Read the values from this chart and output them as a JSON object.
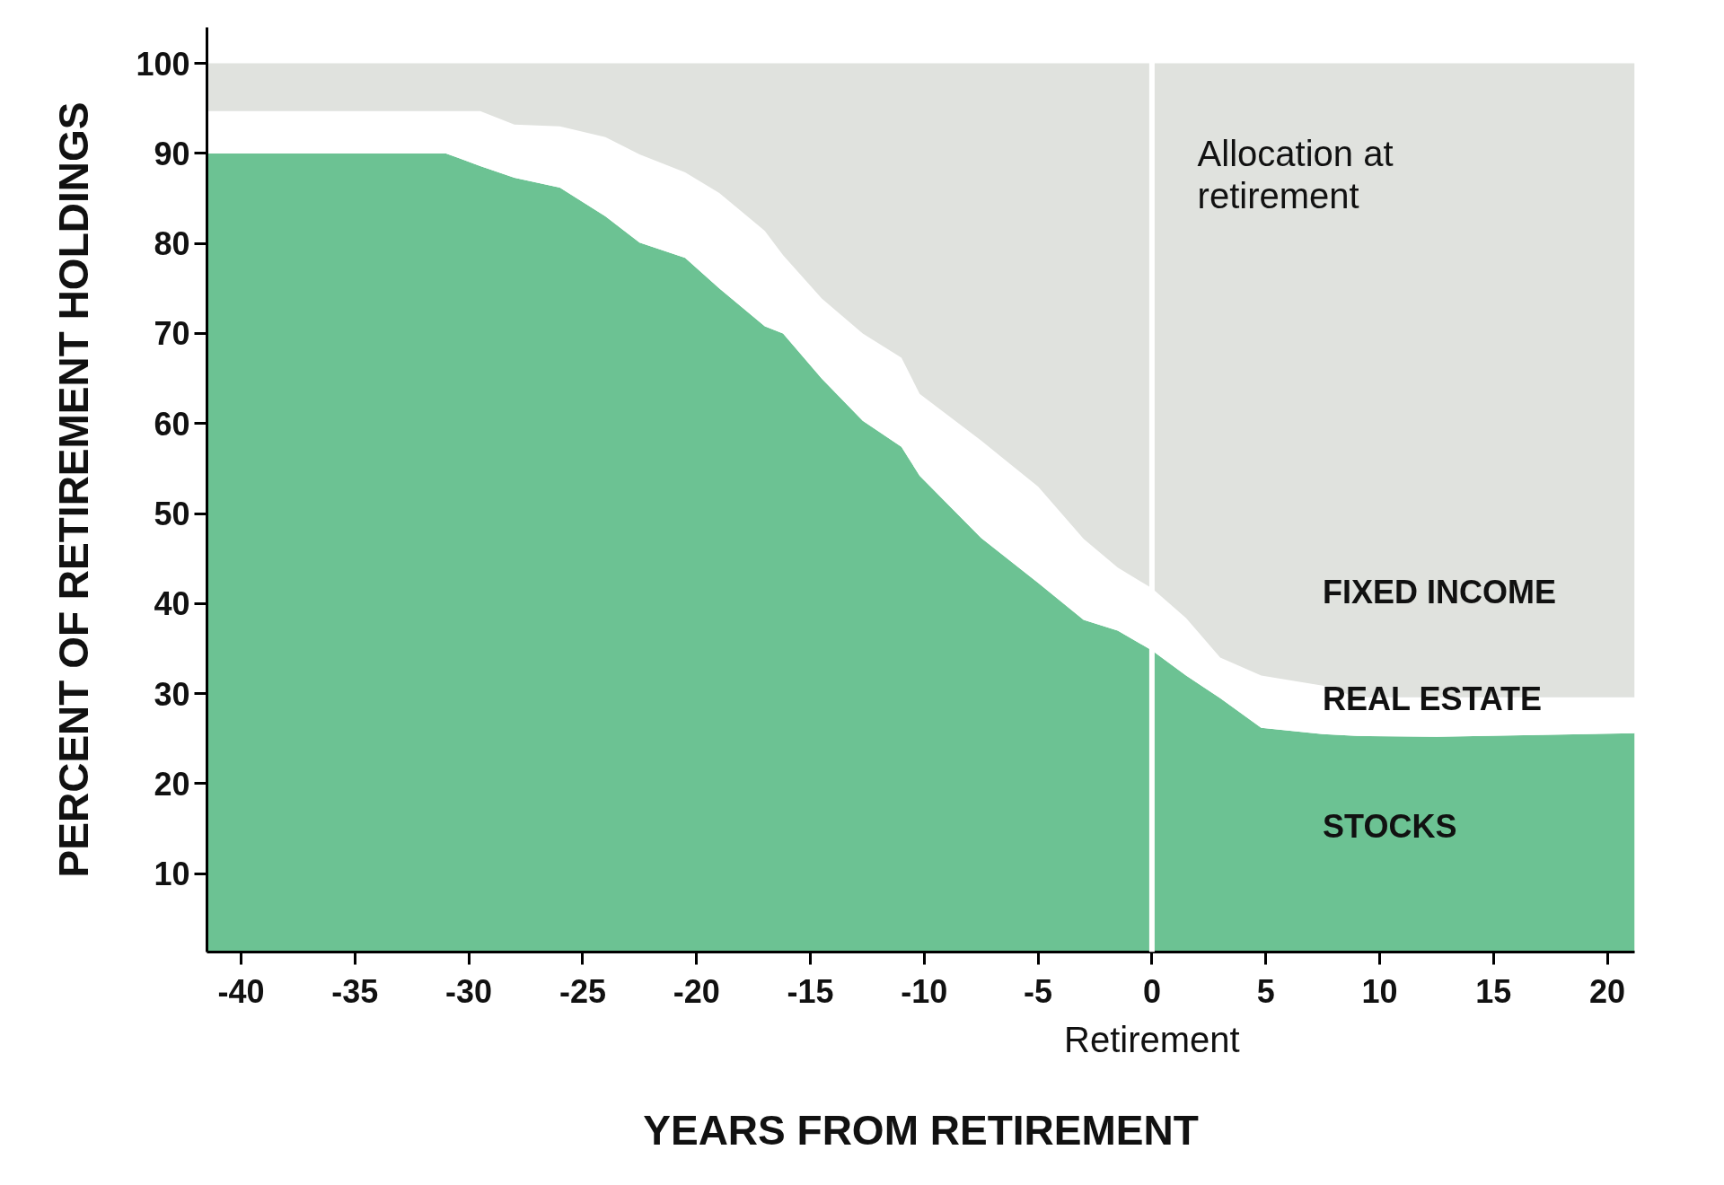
{
  "chart_data": {
    "type": "area",
    "stacked": true,
    "xlabel": "YEARS FROM RETIREMENT",
    "ylabel": "PERCENT OF RETIREMENT HOLDINGS",
    "x": [
      -41.5,
      -31,
      -29.5,
      -28,
      -26,
      -24,
      -22.5,
      -20.5,
      -19,
      -17,
      -16.2,
      -14.5,
      -12.7,
      -11,
      -10.2,
      -7.5,
      -5,
      -3,
      -1.5,
      0,
      1.5,
      3,
      4.8,
      7.5,
      9,
      12.5,
      21.2
    ],
    "series": [
      {
        "name": "STOCKS",
        "color": "#6cc293",
        "values": [
          90,
          90,
          88.6,
          87.3,
          86.2,
          83,
          80.1,
          78.4,
          75,
          70.8,
          70,
          65,
          60.3,
          57.4,
          54.2,
          47.3,
          42.3,
          38.2,
          37,
          34.8,
          32,
          29.5,
          26.2,
          25.5,
          25.3,
          25.2,
          25.6
        ]
      },
      {
        "name": "REAL ESTATE",
        "color": "#ffffff",
        "values": [
          4.7,
          4.7,
          6.1,
          5.9,
          6.8,
          8.8,
          9.8,
          9.5,
          10.6,
          10.6,
          8.7,
          8.9,
          9.7,
          9.9,
          9.1,
          10.8,
          10.7,
          9,
          7,
          6.9,
          6.4,
          4.5,
          5.8,
          5.4,
          4.3,
          4.4,
          4
        ]
      },
      {
        "name": "FIXED INCOME",
        "color": "#e0e2de",
        "values": [
          5.3,
          5.3,
          5.3,
          6.8,
          7,
          8.2,
          10.1,
          12.1,
          14.4,
          18.6,
          21.3,
          26.1,
          30,
          32.7,
          36.7,
          41.9,
          47,
          52.8,
          56,
          58.3,
          61.6,
          66,
          68,
          69.1,
          70.4,
          70.4,
          70.4
        ]
      }
    ],
    "xlim": [
      -41.5,
      21.2
    ],
    "ylim": [
      1.3,
      104
    ],
    "xticks": [
      -40,
      -35,
      -30,
      -25,
      -20,
      -15,
      -10,
      -5,
      0,
      5,
      10,
      15,
      20
    ],
    "yticks": [
      10,
      20,
      30,
      40,
      50,
      60,
      70,
      80,
      90,
      100
    ],
    "ref_lines": [
      {
        "axis": "x",
        "value": 0,
        "color": "#ffffff"
      }
    ],
    "annotations": [
      {
        "text": "Allocation at retirement",
        "x": 0,
        "y": 88
      },
      "Retirement"
    ],
    "grid": false
  }
}
